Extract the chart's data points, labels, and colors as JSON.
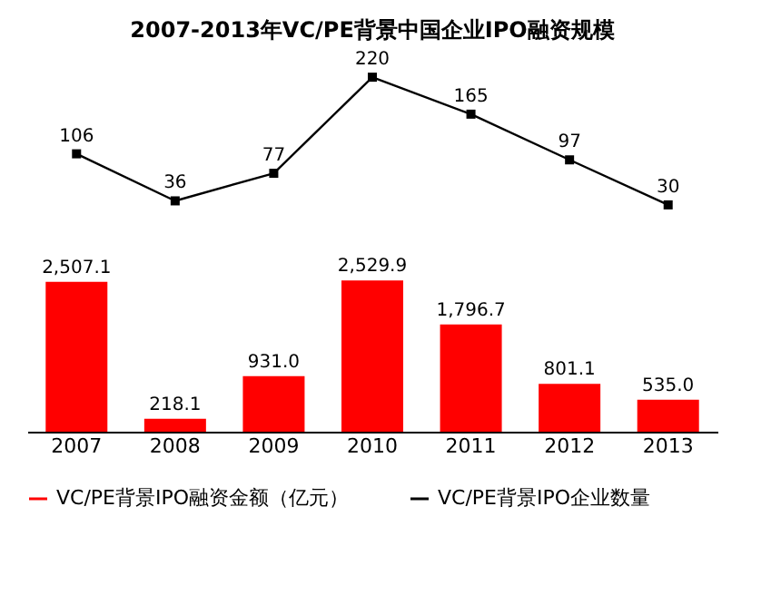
{
  "chart_data": [
    {
      "type": "line",
      "title": "2007-2013年VC/PE背景中国企业IPO融资规模",
      "categories": [
        "2007",
        "2008",
        "2009",
        "2010",
        "2011",
        "2012",
        "2013"
      ],
      "series": [
        {
          "name": "VC/PE背景IPO企业数量",
          "color": "#000000",
          "values": [
            106,
            36,
            77,
            220,
            165,
            97,
            30
          ]
        }
      ],
      "marker": "square",
      "data_labels": true,
      "tick_labels": false,
      "legend": "bottom"
    },
    {
      "type": "bar",
      "categories": [
        "2007",
        "2008",
        "2009",
        "2010",
        "2011",
        "2012",
        "2013"
      ],
      "series": [
        {
          "name": "VC/PE背景IPO融资金额（亿元）",
          "color": "#ff0000",
          "values": [
            2507.1,
            218.1,
            931.0,
            2529.9,
            1796.7,
            801.1,
            535.0
          ],
          "value_labels": [
            "2,507.1",
            "218.1",
            "931.0",
            "2,529.9",
            "1,796.7",
            "801.1",
            "535.0"
          ]
        }
      ],
      "legend": "bottom"
    }
  ]
}
